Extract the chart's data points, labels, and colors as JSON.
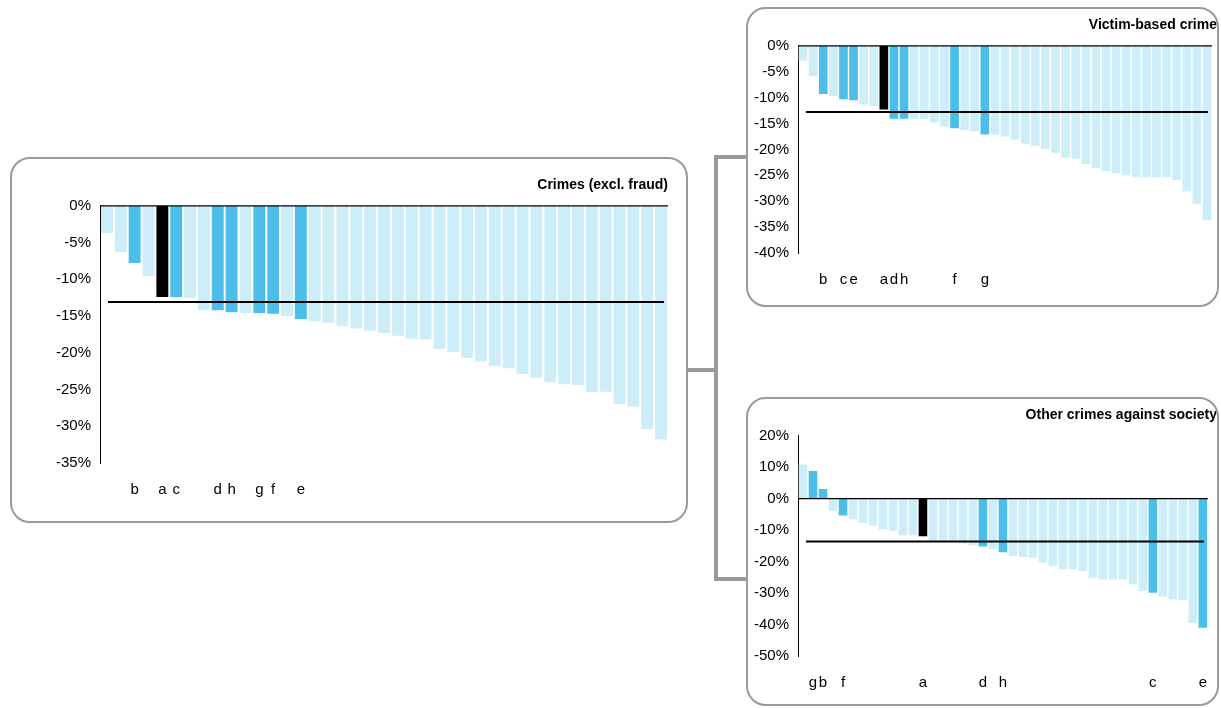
{
  "chart_data": [
    {
      "type": "bar",
      "title": "Crimes (excl. fraud)",
      "categories": [
        null,
        null,
        "b",
        null,
        "a",
        "c",
        null,
        null,
        "d",
        "h",
        null,
        "g",
        "f",
        null,
        "e",
        null,
        null,
        null,
        null,
        null,
        null,
        null,
        null,
        null,
        null,
        null,
        null,
        null,
        null,
        null,
        null,
        null,
        null,
        null,
        null,
        null,
        null,
        null,
        null,
        null,
        null
      ],
      "values": [
        -3.7,
        -6.3,
        -7.8,
        -9.6,
        -12.4,
        -12.4,
        -12.5,
        -14.2,
        -14.2,
        -14.5,
        -14.6,
        -14.6,
        -14.7,
        -15.0,
        -15.4,
        -15.7,
        -15.9,
        -16.4,
        -16.7,
        -17.0,
        -17.3,
        -17.7,
        -18.1,
        -18.2,
        -19.5,
        -19.9,
        -20.7,
        -21.2,
        -21.8,
        -22.1,
        -22.9,
        -23.4,
        -24.0,
        -24.3,
        -24.4,
        -25.3,
        -25.3,
        -27.0,
        -27.3,
        -30.4,
        -31.8
      ],
      "colors": [
        "#cdeef9",
        "#cdeef9",
        "#4bbfea",
        "#cdeef9",
        "#000000",
        "#4bbfea",
        "#cdeef9",
        "#cdeef9",
        "#4bbfea",
        "#4bbfea",
        "#cdeef9",
        "#4bbfea",
        "#4bbfea",
        "#cdeef9",
        "#4bbfea",
        "#cdeef9",
        "#cdeef9",
        "#cdeef9",
        "#cdeef9",
        "#cdeef9",
        "#cdeef9",
        "#cdeef9",
        "#cdeef9",
        "#cdeef9",
        "#cdeef9",
        "#cdeef9",
        "#cdeef9",
        "#cdeef9",
        "#cdeef9",
        "#cdeef9",
        "#cdeef9",
        "#cdeef9",
        "#cdeef9",
        "#cdeef9",
        "#cdeef9",
        "#cdeef9",
        "#cdeef9",
        "#cdeef9",
        "#cdeef9",
        "#cdeef9",
        "#cdeef9"
      ],
      "ylim": [
        -35,
        0
      ],
      "yticks": [
        {
          "value": 0,
          "label": "0%"
        },
        {
          "value": -5,
          "label": "-5%"
        },
        {
          "value": -10,
          "label": "-10%"
        },
        {
          "value": -15,
          "label": "-15%"
        },
        {
          "value": -20,
          "label": "-20%"
        },
        {
          "value": -25,
          "label": "-25%"
        },
        {
          "value": -30,
          "label": "-30%"
        },
        {
          "value": -35,
          "label": "-35%"
        }
      ],
      "ref_lines": [
        {
          "axis": "y",
          "value": -13.1,
          "color": "#000000"
        }
      ]
    },
    {
      "type": "bar",
      "title": "Victim-based crime",
      "categories": [
        null,
        null,
        "b",
        null,
        "c",
        "e",
        null,
        null,
        "a",
        "d",
        "h",
        null,
        null,
        null,
        null,
        "f",
        null,
        null,
        "g",
        null,
        null,
        null,
        null,
        null,
        null,
        null,
        null,
        null,
        null,
        null,
        null,
        null,
        null,
        null,
        null,
        null,
        null,
        null,
        null,
        null,
        null
      ],
      "values": [
        -2.9,
        -5.9,
        -9.3,
        -9.7,
        -10.3,
        -10.5,
        -11.4,
        -11.6,
        -12.3,
        -14.1,
        -14.1,
        -14.1,
        -14.1,
        -14.8,
        -15.6,
        -15.9,
        -16.3,
        -16.5,
        -17.1,
        -17.1,
        -17.5,
        -18.1,
        -18.9,
        -19.3,
        -19.9,
        -20.7,
        -21.6,
        -21.8,
        -22.8,
        -23.6,
        -24.2,
        -24.6,
        -25.0,
        -25.4,
        -25.4,
        -25.4,
        -25.4,
        -25.9,
        -28.1,
        -30.5,
        -33.7
      ],
      "colors": [
        "#cdeef9",
        "#cdeef9",
        "#4bbfea",
        "#cdeef9",
        "#4bbfea",
        "#4bbfea",
        "#cdeef9",
        "#cdeef9",
        "#000000",
        "#4bbfea",
        "#4bbfea",
        "#cdeef9",
        "#cdeef9",
        "#cdeef9",
        "#cdeef9",
        "#4bbfea",
        "#cdeef9",
        "#cdeef9",
        "#4bbfea",
        "#cdeef9",
        "#cdeef9",
        "#cdeef9",
        "#cdeef9",
        "#cdeef9",
        "#cdeef9",
        "#cdeef9",
        "#cdeef9",
        "#cdeef9",
        "#cdeef9",
        "#cdeef9",
        "#cdeef9",
        "#cdeef9",
        "#cdeef9",
        "#cdeef9",
        "#cdeef9",
        "#cdeef9",
        "#cdeef9",
        "#cdeef9",
        "#cdeef9",
        "#cdeef9",
        "#cdeef9"
      ],
      "ylim": [
        -40,
        0
      ],
      "yticks": [
        {
          "value": 0,
          "label": "0%"
        },
        {
          "value": -5,
          "label": "-5%"
        },
        {
          "value": -10,
          "label": "-10%"
        },
        {
          "value": -15,
          "label": "-15%"
        },
        {
          "value": -20,
          "label": "-20%"
        },
        {
          "value": -25,
          "label": "-25%"
        },
        {
          "value": -30,
          "label": "-30%"
        },
        {
          "value": -35,
          "label": "-35%"
        },
        {
          "value": -40,
          "label": "-40%"
        }
      ],
      "ref_lines": [
        {
          "axis": "y",
          "value": -12.8,
          "color": "#000000"
        }
      ]
    },
    {
      "type": "bar",
      "title": "Other crimes against society",
      "categories": [
        null,
        "g",
        "b",
        null,
        "f",
        null,
        null,
        null,
        null,
        null,
        null,
        null,
        "a",
        null,
        null,
        null,
        null,
        null,
        "d",
        null,
        "h",
        null,
        null,
        null,
        null,
        null,
        null,
        null,
        null,
        null,
        null,
        null,
        null,
        null,
        null,
        "c",
        null,
        null,
        null,
        null,
        "e"
      ],
      "values": [
        10.9,
        8.8,
        3.1,
        -3.8,
        -5.3,
        -6.5,
        -7.7,
        -8.6,
        -9.8,
        -10.1,
        -11.6,
        -11.6,
        -11.9,
        -13.4,
        -13.4,
        -13.4,
        -14.2,
        -14.9,
        -15.2,
        -16.1,
        -17.0,
        -18.2,
        -18.5,
        -18.8,
        -20.3,
        -21.5,
        -22.4,
        -22.4,
        -23.0,
        -25.1,
        -25.7,
        -25.7,
        -25.7,
        -27.2,
        -29.3,
        -29.9,
        -31.1,
        -32.0,
        -32.3,
        -39.5,
        -41.0
      ],
      "colors": [
        "#cdeef9",
        "#4bbfea",
        "#4bbfea",
        "#cdeef9",
        "#4bbfea",
        "#cdeef9",
        "#cdeef9",
        "#cdeef9",
        "#cdeef9",
        "#cdeef9",
        "#cdeef9",
        "#cdeef9",
        "#000000",
        "#cdeef9",
        "#cdeef9",
        "#cdeef9",
        "#cdeef9",
        "#cdeef9",
        "#4bbfea",
        "#cdeef9",
        "#4bbfea",
        "#cdeef9",
        "#cdeef9",
        "#cdeef9",
        "#cdeef9",
        "#cdeef9",
        "#cdeef9",
        "#cdeef9",
        "#cdeef9",
        "#cdeef9",
        "#cdeef9",
        "#cdeef9",
        "#cdeef9",
        "#cdeef9",
        "#cdeef9",
        "#4bbfea",
        "#cdeef9",
        "#cdeef9",
        "#cdeef9",
        "#cdeef9",
        "#4bbfea"
      ],
      "ylim": [
        -50,
        20
      ],
      "yticks": [
        {
          "value": 20,
          "label": "20%"
        },
        {
          "value": 10,
          "label": "10%"
        },
        {
          "value": 0,
          "label": "0%"
        },
        {
          "value": -10,
          "label": "-10%"
        },
        {
          "value": -20,
          "label": "-20%"
        },
        {
          "value": -30,
          "label": "-30%"
        },
        {
          "value": -40,
          "label": "-40%"
        },
        {
          "value": -50,
          "label": "-50%"
        }
      ],
      "ref_lines": [
        {
          "axis": "y",
          "value": -13.6,
          "color": "#000000"
        }
      ]
    }
  ]
}
